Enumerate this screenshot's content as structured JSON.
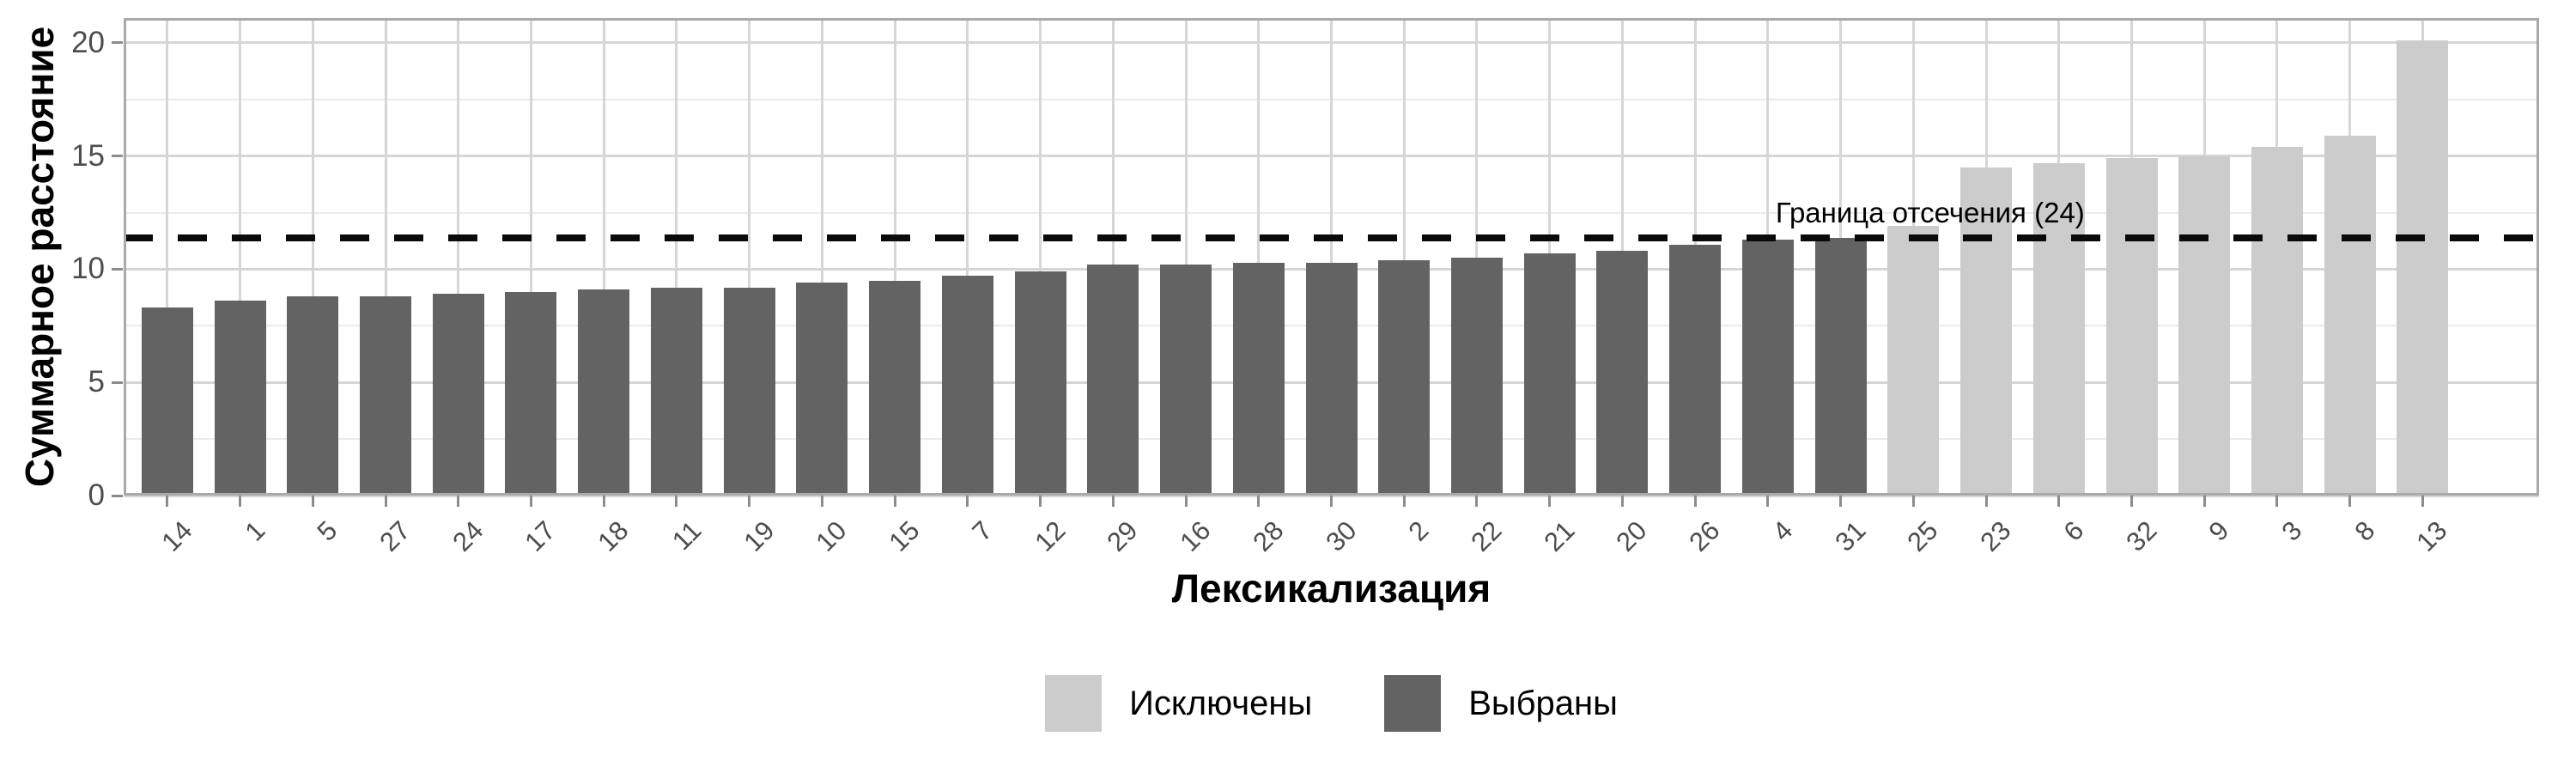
{
  "chart_data": {
    "type": "bar",
    "title": "",
    "xlabel": "Лексикализация",
    "ylabel": "Суммарное расстояние",
    "categories": [
      "14",
      "1",
      "5",
      "27",
      "24",
      "17",
      "18",
      "11",
      "19",
      "10",
      "15",
      "7",
      "12",
      "29",
      "16",
      "28",
      "30",
      "2",
      "22",
      "21",
      "20",
      "26",
      "4",
      "31",
      "25",
      "23",
      "6",
      "32",
      "9",
      "3",
      "8",
      "13"
    ],
    "values": [
      8.3,
      8.6,
      8.8,
      8.8,
      8.9,
      9.0,
      9.1,
      9.2,
      9.2,
      9.4,
      9.5,
      9.7,
      9.9,
      10.2,
      10.2,
      10.3,
      10.3,
      10.4,
      10.5,
      10.7,
      10.8,
      11.1,
      11.3,
      11.4,
      11.9,
      14.5,
      14.7,
      14.9,
      15.0,
      15.4,
      15.9,
      20.1
    ],
    "groups": [
      "selected",
      "selected",
      "selected",
      "selected",
      "selected",
      "selected",
      "selected",
      "selected",
      "selected",
      "selected",
      "selected",
      "selected",
      "selected",
      "selected",
      "selected",
      "selected",
      "selected",
      "selected",
      "selected",
      "selected",
      "selected",
      "selected",
      "selected",
      "selected",
      "excluded",
      "excluded",
      "excluded",
      "excluded",
      "excluded",
      "excluded",
      "excluded",
      "excluded"
    ],
    "group_colors": {
      "selected": "#636363",
      "excluded": "#cccccc"
    },
    "ylim": [
      0,
      21.1
    ],
    "y_ticks": [
      0,
      5,
      10,
      15,
      20
    ],
    "y_minor_ticks": [
      2.5,
      7.5,
      12.5,
      17.5
    ],
    "grid": true,
    "legend_position": "bottom",
    "cutoff": {
      "value": 11.4,
      "label": "Граница отсечения (24)",
      "anchor_category": "6"
    },
    "legend": {
      "items": [
        {
          "key": "excluded",
          "label": "Исключены",
          "color": "#cccccc"
        },
        {
          "key": "selected",
          "label": "Выбраны",
          "color": "#636363"
        }
      ]
    },
    "style_colors": {
      "panel_border": "#a9a9a9",
      "grid_major": "#d6d6d6",
      "grid_minor": "#ebebeb",
      "tick_mark": "#8c8c8c",
      "tick_text": "#4d4d4d",
      "cutoff_line": "#0a0a0a"
    }
  }
}
